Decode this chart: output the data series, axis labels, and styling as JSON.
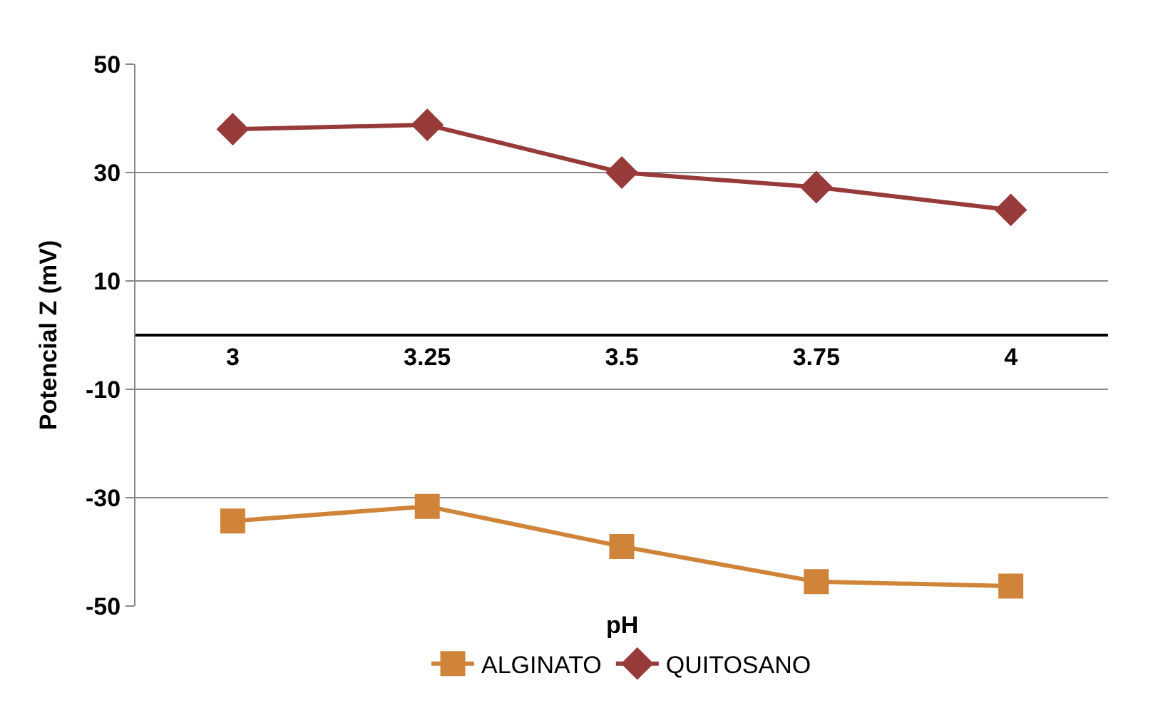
{
  "chart_data": {
    "type": "line",
    "xlabel": "pH",
    "ylabel": "Potencial Z (mV)",
    "categories": [
      "3",
      "3.25",
      "3.5",
      "3.75",
      "4"
    ],
    "series": [
      {
        "name": "ALGINATO",
        "color": "#d0843a",
        "marker": "square",
        "values": [
          -34.3,
          -31.6,
          -39,
          -45.5,
          -46.3
        ]
      },
      {
        "name": "QUITOSANO",
        "color": "#973a3a",
        "marker": "diamond",
        "values": [
          38,
          38.8,
          30,
          27.3,
          23.1
        ]
      }
    ],
    "ylim": [
      -50,
      50
    ],
    "yticks": [
      -50,
      -30,
      -10,
      10,
      30,
      50
    ],
    "grid": "y",
    "legend": "bottom",
    "line_style": "solid"
  }
}
